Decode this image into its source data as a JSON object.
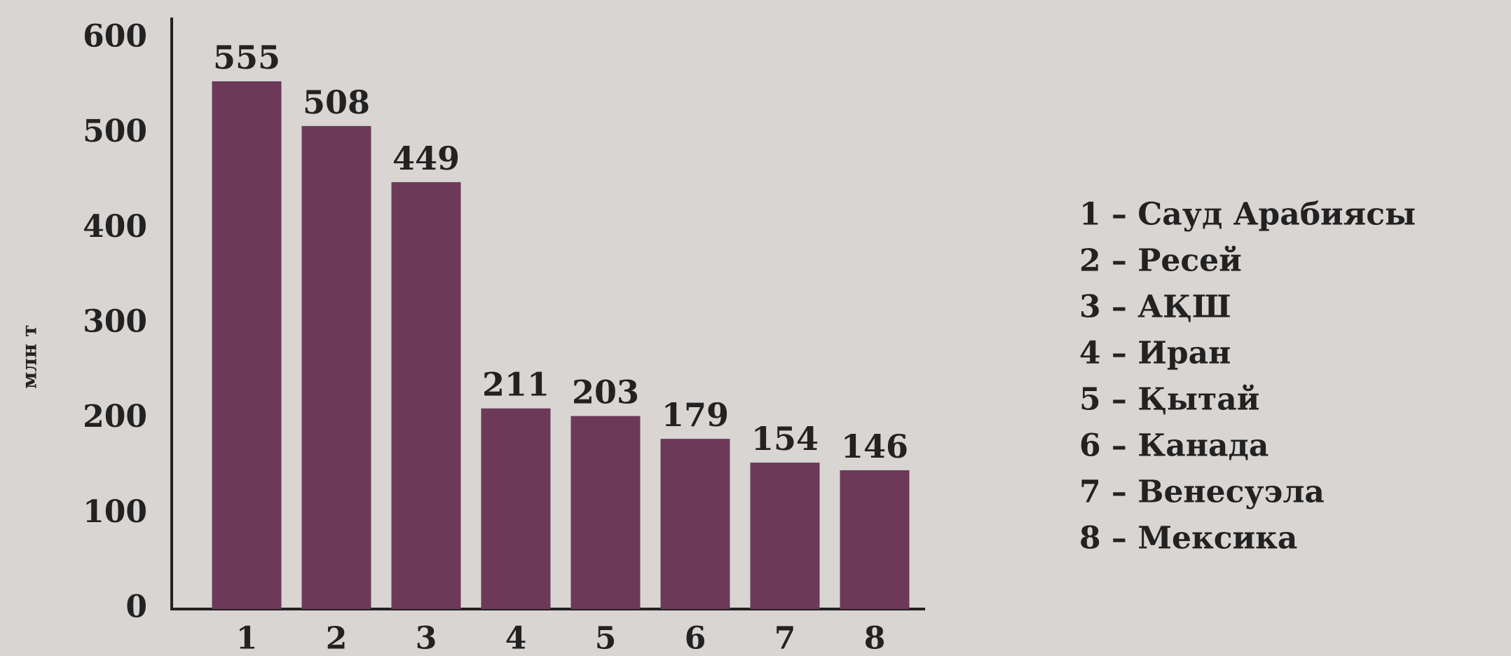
{
  "chart_data": {
    "type": "bar",
    "y_label": "млн т",
    "categories": [
      "1",
      "2",
      "3",
      "4",
      "5",
      "6",
      "7",
      "8"
    ],
    "values": [
      555,
      508,
      449,
      211,
      203,
      179,
      154,
      146
    ],
    "color": "#6c3a58",
    "ylim": [
      0,
      600
    ],
    "yticks": [
      0,
      100,
      200,
      300,
      400,
      500,
      600
    ],
    "grid": false,
    "legend": [
      "1 – Сауд Арабиясы",
      "2 – Ресей",
      "3 – АҚШ",
      "4 – Иран",
      "5 – Қытай",
      "6 – Канада",
      "7 – Венесуэла",
      "8 – Мексика"
    ]
  }
}
